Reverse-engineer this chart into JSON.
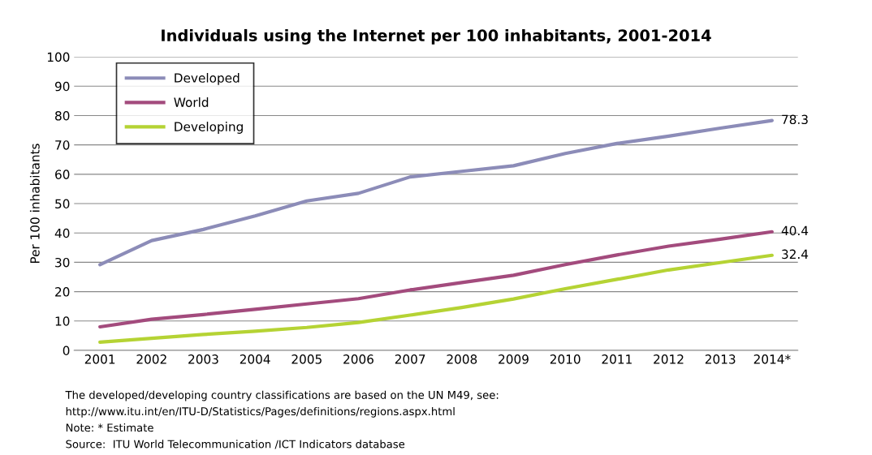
{
  "chart_data": {
    "type": "line",
    "title": "Individuals using the Internet per 100 inhabitants, 2001-2014",
    "ylabel": "Per 100 inhabitants",
    "categories": [
      "2001",
      "2002",
      "2003",
      "2004",
      "2005",
      "2006",
      "2007",
      "2008",
      "2009",
      "2010",
      "2011",
      "2012",
      "2013",
      "2014*"
    ],
    "series": [
      {
        "name": "Developed",
        "color": "#8c8cb8",
        "values": [
          29.2,
          37.4,
          41.2,
          45.8,
          50.9,
          53.5,
          59.1,
          61.0,
          62.9,
          67.1,
          70.5,
          73.0,
          75.7,
          78.3
        ],
        "value_labels": [
          null,
          null,
          null,
          null,
          null,
          null,
          null,
          null,
          null,
          null,
          null,
          null,
          null,
          "78.3"
        ]
      },
      {
        "name": "World",
        "color": "#a34b7d",
        "values": [
          8.0,
          10.6,
          12.2,
          14.0,
          15.8,
          17.6,
          20.6,
          23.1,
          25.6,
          29.2,
          32.5,
          35.5,
          37.9,
          40.4
        ],
        "value_labels": [
          null,
          null,
          null,
          null,
          null,
          null,
          null,
          null,
          null,
          null,
          null,
          null,
          null,
          "40.4"
        ]
      },
      {
        "name": "Developing",
        "color": "#b5d334",
        "values": [
          2.8,
          4.1,
          5.4,
          6.5,
          7.8,
          9.5,
          12.0,
          14.6,
          17.5,
          21.0,
          24.2,
          27.4,
          29.9,
          32.4
        ],
        "value_labels": [
          null,
          null,
          null,
          null,
          null,
          null,
          null,
          null,
          null,
          null,
          null,
          null,
          null,
          "32.4"
        ]
      }
    ],
    "ylim": [
      0,
      100
    ],
    "yticks": [
      0,
      10,
      20,
      30,
      40,
      50,
      60,
      70,
      80,
      90,
      100
    ],
    "grid": "y",
    "legend": "top left",
    "marker": "none",
    "line_style": "solid",
    "annotations": [
      "The developed/developing country classifications are based on the UN M49, see:",
      "http://www.itu.int/en/ITU-D/Statistics/Pages/definitions/regions.aspx.html",
      "Note: * Estimate",
      "Source:  ITU World Telecommunication /ICT Indicators database"
    ]
  }
}
